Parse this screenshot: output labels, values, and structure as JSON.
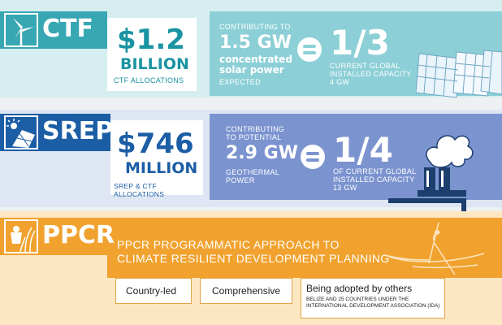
{
  "ctf": {
    "name": "CTF",
    "amount": "$1.2",
    "amount_unit": "BILLION",
    "allocations_label": "CTF ALLOCATIONS",
    "contributing": "CONTRIBUTING TO",
    "gw": "1.5 GW",
    "power_line1": "concentrated",
    "power_line2": "solar power",
    "expected": "EXPECTED",
    "fraction": "1/3",
    "capacity_line1": "CURRENT GLOBAL",
    "capacity_line2": "INSTALLED CAPACITY",
    "capacity_line3": "4 GW",
    "colors": {
      "dark": "#37a7b3",
      "light": "#8ccfd6"
    }
  },
  "srep": {
    "name": "SREP",
    "amount": "$746",
    "amount_unit": "MILLION",
    "allocations_label": "SREP & CTF ALLOCATIONS",
    "contributing_line1": "CONTRIBUTING",
    "contributing_line2": "TO POTENTIAL",
    "gw": "2.9 GW",
    "power_line1": "GEOTHERMAL",
    "power_line2": "POWER",
    "fraction": "1/4",
    "capacity_line1": "OF CURRENT GLOBAL",
    "capacity_line2": "INSTALLED CAPACITY",
    "capacity_line3": "13 GW",
    "colors": {
      "dark": "#1c5ea6",
      "light": "#7b93cf"
    }
  },
  "ppcr": {
    "name": "PPCR",
    "approach_line1": "PPCR PROGRAMMATIC APPROACH TO",
    "approach_line2": "CLIMATE RESILIENT DEVELOPMENT PLANNING",
    "box1": "Country-led",
    "box2": "Comprehensive",
    "box3_title": "Being adopted by others",
    "box3_sub_line1": "BELIZE AND 25 COUNTRIES UNDER THE",
    "box3_sub_line2": "INTERNATIONAL DEVELOPMENT ASSOCIATION (IDA)",
    "colors": {
      "dark": "#f1a22e",
      "light": "#fbd08a"
    }
  },
  "icons": {
    "ctf": "wind-turbine-icon",
    "srep": "sun-solar-panel-icon",
    "ppcr": "person-in-crops-icon",
    "ctf_art": "solar-panels-icon",
    "srep_art": "geothermal-plant-icon",
    "ppcr_art": "fisherman-boat-icon"
  }
}
